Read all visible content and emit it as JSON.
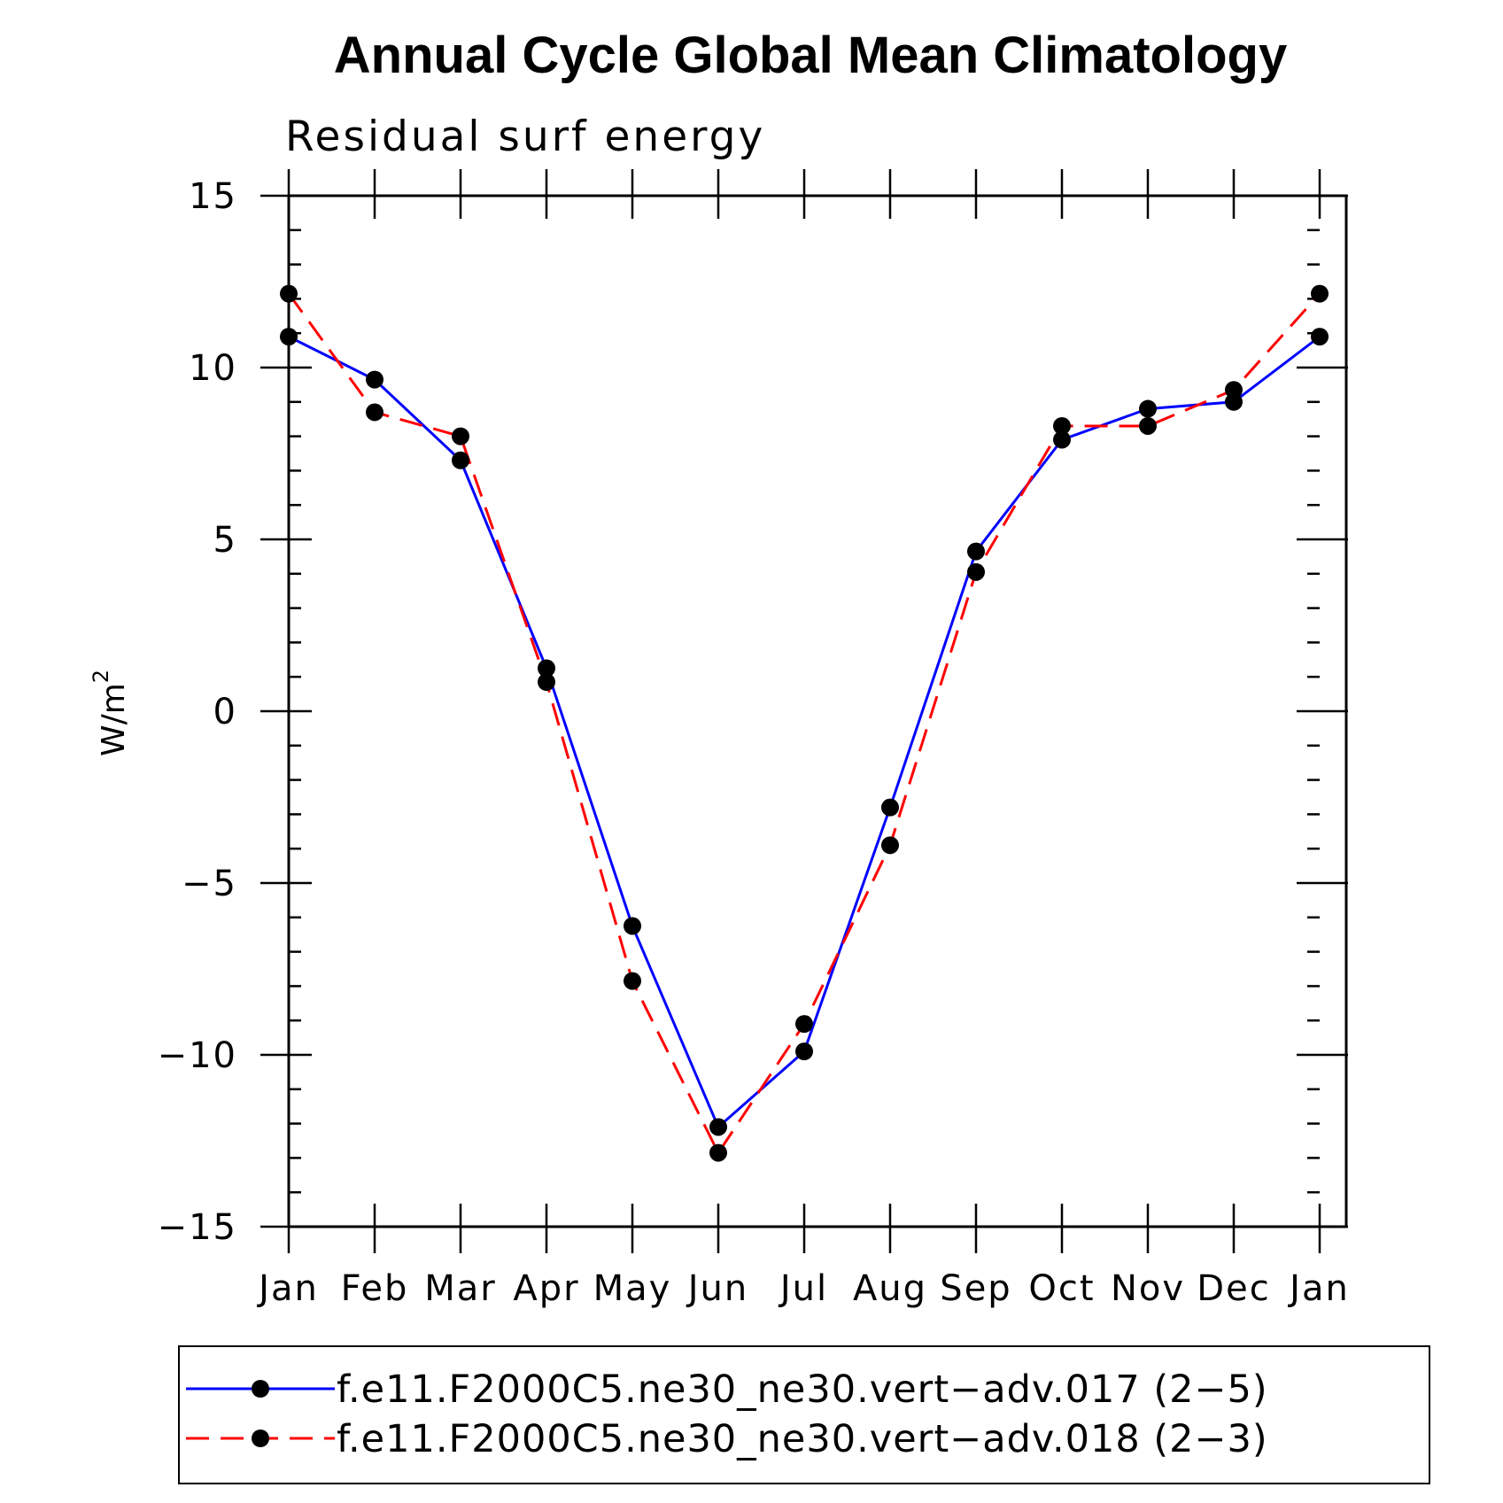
{
  "chart_data": {
    "type": "line",
    "title": "Annual Cycle Global Mean Climatology",
    "subtitle": "Residual surf energy",
    "ylabel": "W/m",
    "ylabel_sup": "2",
    "xlabel": "",
    "categories": [
      "Jan",
      "Feb",
      "Mar",
      "Apr",
      "May",
      "Jun",
      "Jul",
      "Aug",
      "Sep",
      "Oct",
      "Nov",
      "Dec",
      "Jan"
    ],
    "ylim": [
      -15,
      15
    ],
    "yticks": [
      {
        "value": -15,
        "label": "−15"
      },
      {
        "value": -10,
        "label": "−10"
      },
      {
        "value": -5,
        "label": "−5"
      },
      {
        "value": 0,
        "label": "0"
      },
      {
        "value": 5,
        "label": "5"
      },
      {
        "value": 10,
        "label": "10"
      },
      {
        "value": 15,
        "label": "15"
      }
    ],
    "minor_step": 1,
    "grid": false,
    "legend_position": "bottom",
    "series": [
      {
        "name": "f.e11.F2000C5.ne30_ne30.vert−adv.017 (2−5)",
        "color": "#0000ff",
        "dash": "solid",
        "marker": "filled-circle",
        "values": [
          10.9,
          9.65,
          7.3,
          1.25,
          -6.25,
          -12.1,
          -9.9,
          -2.8,
          4.65,
          7.9,
          8.8,
          9.0,
          10.9
        ]
      },
      {
        "name": "f.e11.F2000C5.ne30_ne30.vert−adv.018 (2−3)",
        "color": "#ff0000",
        "dash": "dashed",
        "marker": "filled-circle",
        "values": [
          12.15,
          8.7,
          8.0,
          0.85,
          -7.85,
          -12.85,
          -9.1,
          -3.9,
          4.05,
          8.3,
          8.3,
          9.35,
          12.15
        ]
      }
    ]
  }
}
